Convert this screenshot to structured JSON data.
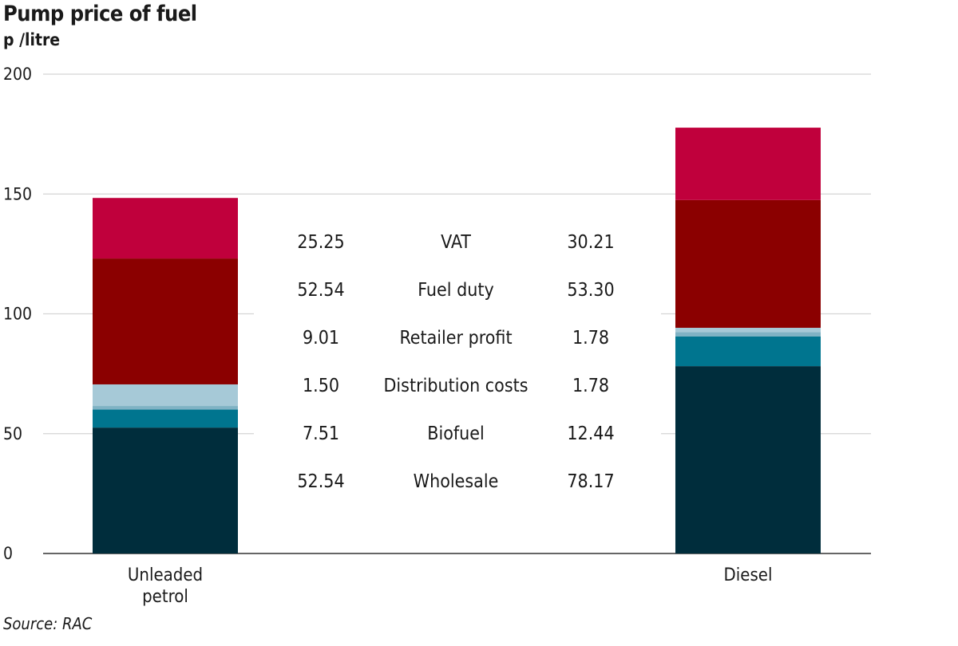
{
  "header": {
    "title": "Pump price of fuel",
    "subtitle": "p /litre"
  },
  "footer": {
    "source": "Source: RAC"
  },
  "chart_data": {
    "type": "bar",
    "stacked": true,
    "title": "Pump price of fuel",
    "ylabel": "p /litre",
    "ylim": [
      0,
      200
    ],
    "yticks": [
      0,
      50,
      100,
      150,
      200
    ],
    "grid": true,
    "categories": [
      "Unleaded petrol",
      "Diesel"
    ],
    "category_lines": [
      [
        "Unleaded",
        "petrol"
      ],
      [
        "Diesel"
      ]
    ],
    "series": [
      {
        "name": "Wholesale",
        "color": "#002d3c",
        "values": [
          52.54,
          78.17
        ]
      },
      {
        "name": "Biofuel",
        "color": "#00758f",
        "values": [
          7.51,
          12.44
        ]
      },
      {
        "name": "Distribution costs",
        "color": "#7fb2c4",
        "values": [
          1.5,
          1.78
        ]
      },
      {
        "name": "Retailer profit",
        "color": "#a6c9d7",
        "values": [
          9.01,
          1.78
        ]
      },
      {
        "name": "Fuel duty",
        "color": "#8b0000",
        "values": [
          52.54,
          53.3
        ]
      },
      {
        "name": "VAT",
        "color": "#c0003c",
        "values": [
          25.25,
          30.21
        ]
      }
    ],
    "value_table": [
      {
        "label": "VAT",
        "left": "25.25",
        "right": "30.21"
      },
      {
        "label": "Fuel duty",
        "left": "52.54",
        "right": "53.30"
      },
      {
        "label": "Retailer profit",
        "left": "9.01",
        "right": "1.78"
      },
      {
        "label": "Distribution costs",
        "left": "1.50",
        "right": "1.78"
      },
      {
        "label": "Biofuel",
        "left": "7.51",
        "right": "12.44"
      },
      {
        "label": "Wholesale",
        "left": "52.54",
        "right": "78.17"
      }
    ]
  }
}
